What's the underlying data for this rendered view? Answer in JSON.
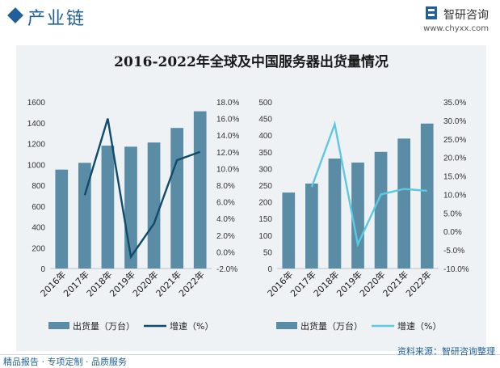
{
  "header": {
    "section_title": "产业链",
    "brand_name": "智研咨询",
    "brand_url": "www.chyxx.com"
  },
  "chart_title": "2016-2022年全球及中国服务器出货量情况",
  "chart_data": [
    {
      "type": "bar+line",
      "name": "global",
      "categories": [
        "2016年",
        "2017年",
        "2018年",
        "2019年",
        "2020年",
        "2021年",
        "2022年"
      ],
      "series": [
        {
          "name": "出货量（万台）",
          "axis": "left",
          "type": "bar",
          "values": [
            950,
            1015,
            1180,
            1170,
            1210,
            1350,
            1510
          ]
        },
        {
          "name": "增速（%）",
          "axis": "right",
          "type": "line",
          "values": [
            null,
            6.8,
            16.0,
            -0.6,
            3.4,
            11.0,
            12.0
          ]
        }
      ],
      "left_axis": {
        "ylim": [
          0,
          1600
        ],
        "ticks": [
          "0",
          "200",
          "400",
          "600",
          "800",
          "1000",
          "1200",
          "1400",
          "1600"
        ]
      },
      "right_axis": {
        "ylim": [
          -2,
          18
        ],
        "ticks": [
          "-2.0%",
          "0.0%",
          "2.0%",
          "4.0%",
          "6.0%",
          "8.0%",
          "10.0%",
          "12.0%",
          "14.0%",
          "16.0%",
          "18.0%"
        ]
      },
      "colors": {
        "bar": "#5b8ca6",
        "line": "#0f4c6b"
      }
    },
    {
      "type": "bar+line",
      "name": "china",
      "categories": [
        "2016年",
        "2017年",
        "2018年",
        "2019年",
        "2020年",
        "2021年",
        "2022年"
      ],
      "series": [
        {
          "name": "出货量（万台）",
          "axis": "left",
          "type": "bar",
          "values": [
            228,
            255,
            330,
            318,
            350,
            390,
            435
          ]
        },
        {
          "name": "增速（%）",
          "axis": "right",
          "type": "line",
          "values": [
            null,
            12.0,
            29.0,
            -3.5,
            10.0,
            11.5,
            11.0
          ]
        }
      ],
      "left_axis": {
        "ylim": [
          0,
          500
        ],
        "ticks": [
          "0",
          "50",
          "100",
          "150",
          "200",
          "250",
          "300",
          "350",
          "400",
          "450",
          "500"
        ]
      },
      "right_axis": {
        "ylim": [
          -10,
          35
        ],
        "ticks": [
          "-10.0%",
          "-5.0%",
          "0.0%",
          "5.0%",
          "10.0%",
          "15.0%",
          "20.0%",
          "25.0%",
          "30.0%",
          "35.0%"
        ]
      },
      "colors": {
        "bar": "#5b8ca6",
        "line": "#5dc8e2"
      }
    }
  ],
  "legend": {
    "bar_label": "出货量（万台）",
    "line_label": "增速（%）"
  },
  "footer": {
    "left_text": "精品报告 · 专项定制 · 品质服务",
    "right_text": "资料来源：智研咨询整理"
  }
}
